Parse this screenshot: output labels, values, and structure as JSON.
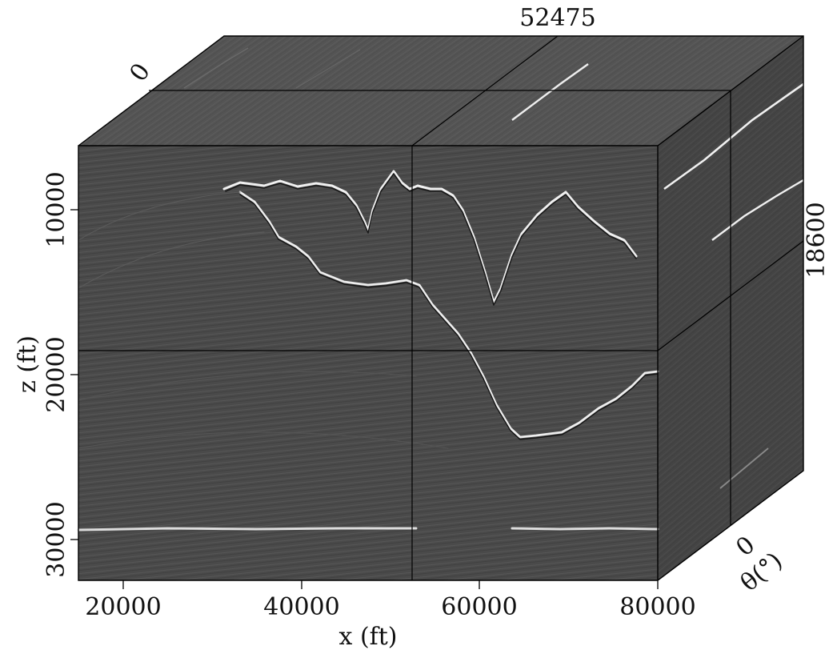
{
  "colors": {
    "background": "#ffffff",
    "face_front": "#4a4a4a",
    "face_top": "#545454",
    "face_side": "#444444",
    "frame": "#000000",
    "reflector_bright": "#f2f2f2",
    "reflector_dark": "#111111"
  },
  "annotations": {
    "top_value": "52475",
    "depth_value": "0",
    "right_value": "18600",
    "angle_zero": "0"
  },
  "axes": {
    "x": {
      "label": "x (ft)",
      "ticks": [
        "20000",
        "40000",
        "60000",
        "80000"
      ]
    },
    "z": {
      "label": "z (ft)",
      "ticks": [
        "10000",
        "20000",
        "30000"
      ]
    },
    "theta": {
      "label": "θ(°)"
    }
  },
  "chart_data": {
    "type": "seismic-volume-cube",
    "x_tick_values": [
      20000,
      40000,
      60000,
      80000
    ],
    "z_tick_values": [
      10000,
      20000,
      30000
    ],
    "slice_x": 52475,
    "slice_z": 18600,
    "slice_theta": 0
  }
}
